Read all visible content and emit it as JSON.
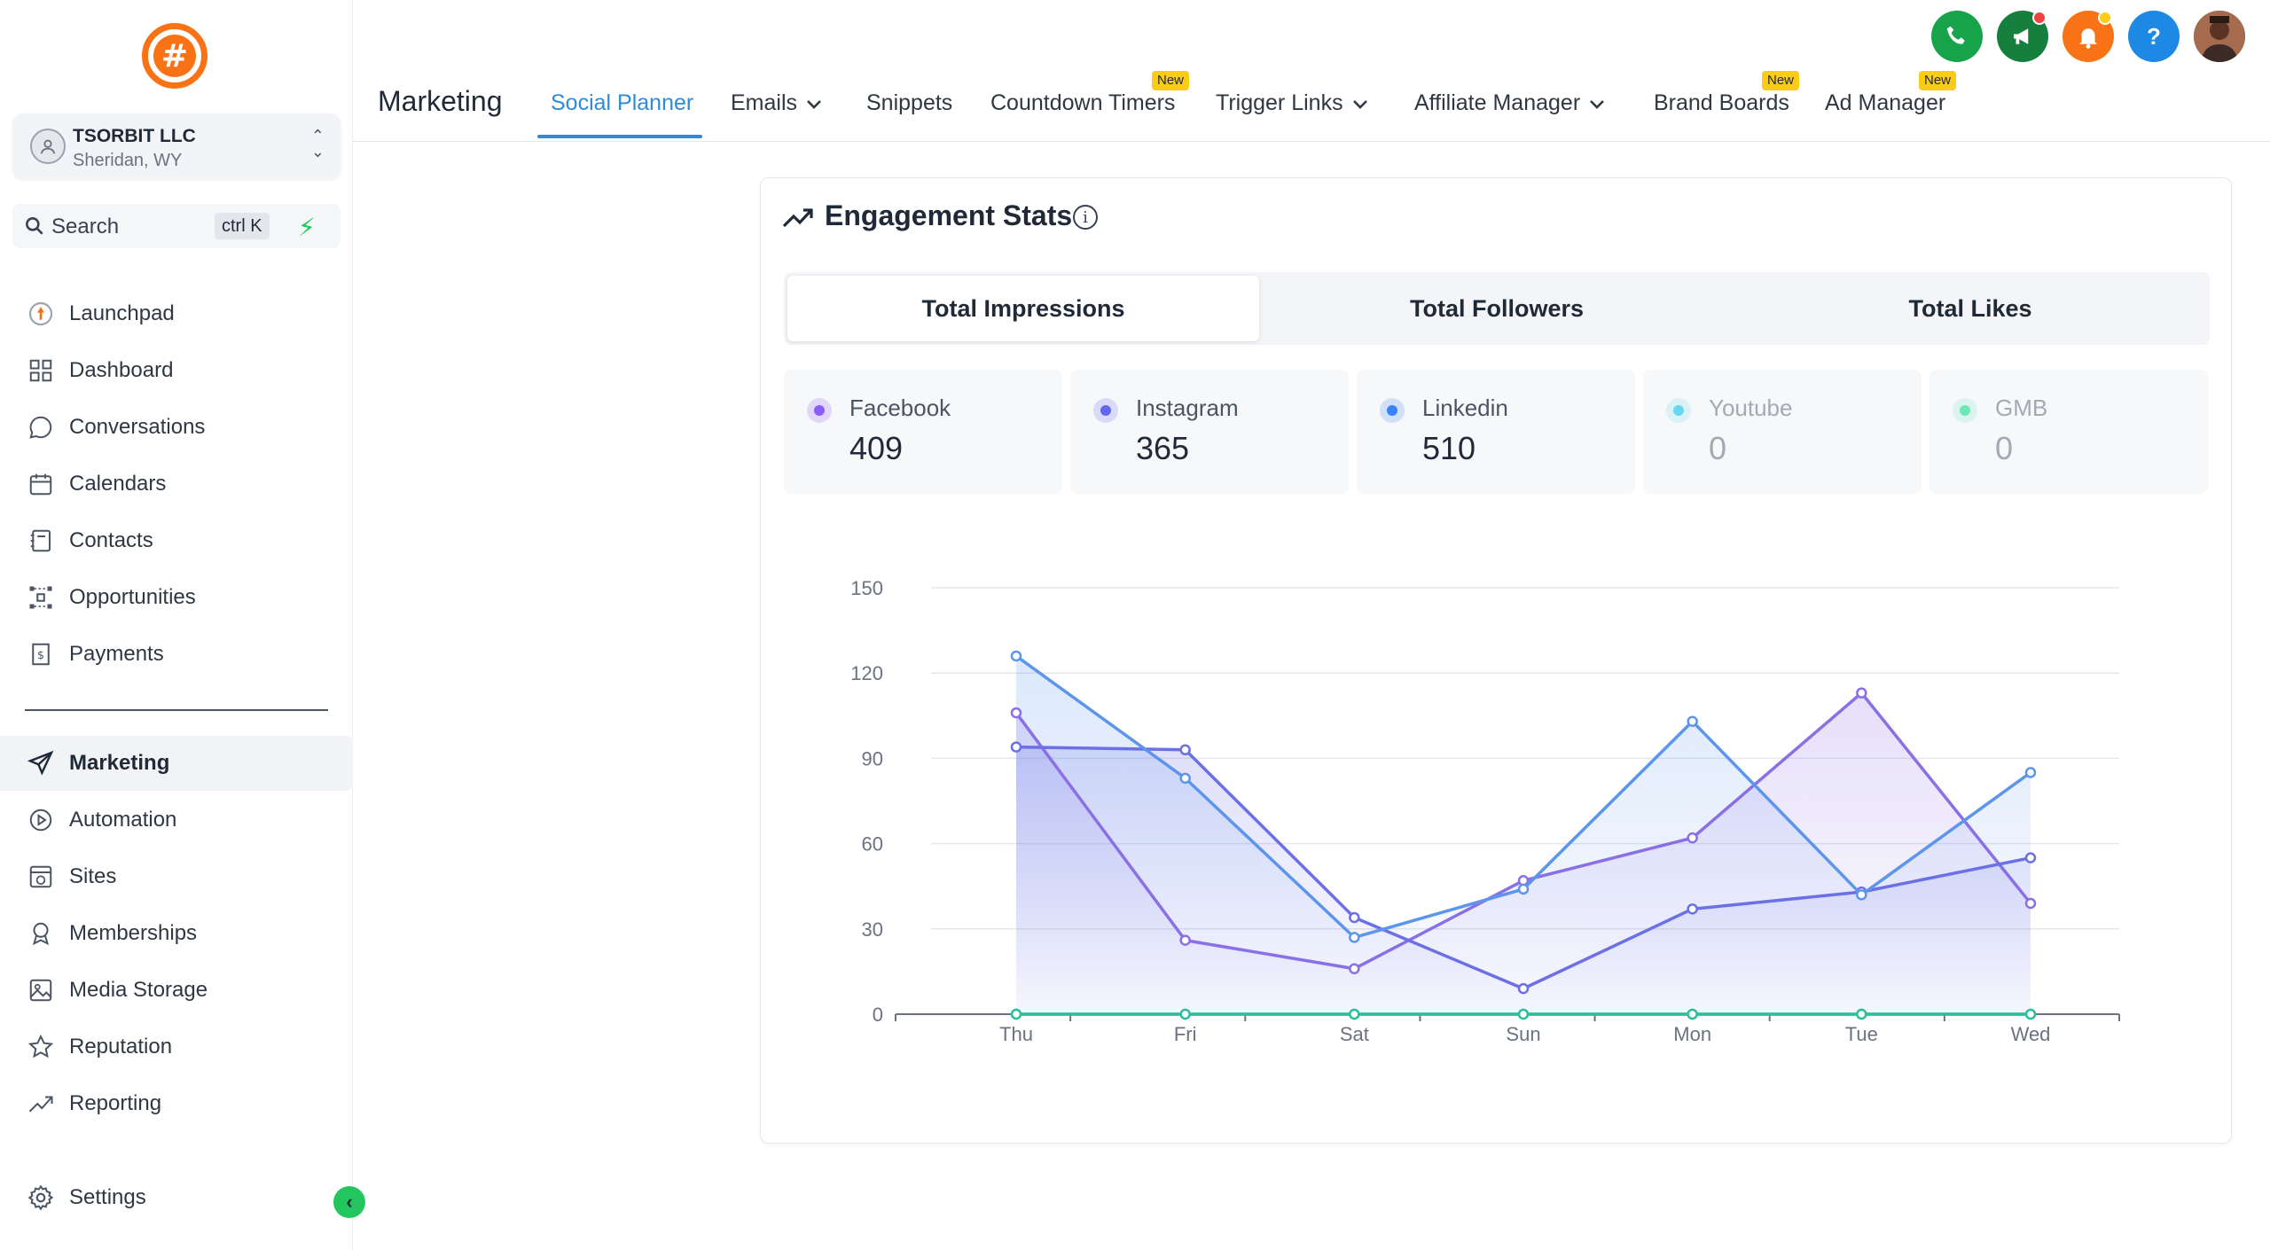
{
  "account": {
    "name": "TSORBIT LLC",
    "location": "Sheridan, WY"
  },
  "search": {
    "label": "Search",
    "shortcut": "ctrl K"
  },
  "sidebar": {
    "items": [
      {
        "label": "Launchpad",
        "icon": "launchpad-icon"
      },
      {
        "label": "Dashboard",
        "icon": "dashboard-icon"
      },
      {
        "label": "Conversations",
        "icon": "chat-icon"
      },
      {
        "label": "Calendars",
        "icon": "calendar-icon"
      },
      {
        "label": "Contacts",
        "icon": "contacts-icon"
      },
      {
        "label": "Opportunities",
        "icon": "opportunities-icon"
      },
      {
        "label": "Payments",
        "icon": "payments-icon"
      }
    ],
    "items2": [
      {
        "label": "Marketing",
        "icon": "send-icon",
        "active": true
      },
      {
        "label": "Automation",
        "icon": "automation-icon"
      },
      {
        "label": "Sites",
        "icon": "sites-icon"
      },
      {
        "label": "Memberships",
        "icon": "membership-icon"
      },
      {
        "label": "Media Storage",
        "icon": "image-icon"
      },
      {
        "label": "Reputation",
        "icon": "star-icon"
      },
      {
        "label": "Reporting",
        "icon": "trend-icon"
      }
    ],
    "settings": "Settings"
  },
  "header": {
    "title": "Marketing",
    "tabs": [
      {
        "label": "Social Planner",
        "active": true
      },
      {
        "label": "Emails",
        "dropdown": true
      },
      {
        "label": "Snippets"
      },
      {
        "label": "Countdown Timers",
        "badge": "New"
      },
      {
        "label": "Trigger Links",
        "dropdown": true
      },
      {
        "label": "Affiliate Manager",
        "dropdown": true
      },
      {
        "label": "Brand Boards",
        "badge": "New"
      },
      {
        "label": "Ad Manager",
        "badge": "New"
      }
    ],
    "badge_new": "New",
    "help": "?",
    "colors": {
      "phone": "#16a34a",
      "announce": "#15803d",
      "bell": "#f97316",
      "help": "#1e88e5"
    }
  },
  "stats": {
    "title": "Engagement Stats",
    "segments": [
      "Total Impressions",
      "Total Followers",
      "Total Likes"
    ],
    "metrics": [
      {
        "name": "Facebook",
        "value": "409",
        "color": "#8b5cf6"
      },
      {
        "name": "Instagram",
        "value": "365",
        "color": "#6366f1"
      },
      {
        "name": "Linkedin",
        "value": "510",
        "color": "#3b82f6"
      },
      {
        "name": "Youtube",
        "value": "0",
        "color": "#67d7f0"
      },
      {
        "name": "GMB",
        "value": "0",
        "color": "#6ee7b7"
      }
    ]
  },
  "chart_data": {
    "type": "area",
    "categories": [
      "Thu",
      "Fri",
      "Sat",
      "Sun",
      "Mon",
      "Tue",
      "Wed"
    ],
    "ylim": [
      0,
      150
    ],
    "yticks": [
      0,
      30,
      60,
      90,
      120,
      150
    ],
    "series": [
      {
        "name": "Facebook",
        "color": "#8b6fe6",
        "values": [
          106,
          26,
          16,
          47,
          62,
          113,
          39
        ]
      },
      {
        "name": "Instagram",
        "color": "#6c70e6",
        "values": [
          94,
          93,
          34,
          9,
          37,
          43,
          55
        ]
      },
      {
        "name": "Linkedin",
        "color": "#5d95ec",
        "values": [
          126,
          83,
          27,
          44,
          103,
          42,
          85
        ]
      },
      {
        "name": "Youtube",
        "color": "#40c4dc",
        "values": [
          0,
          0,
          0,
          0,
          0,
          0,
          0
        ]
      },
      {
        "name": "GMB",
        "color": "#2dbf9a",
        "values": [
          0,
          0,
          0,
          0,
          0,
          0,
          0
        ]
      }
    ]
  }
}
